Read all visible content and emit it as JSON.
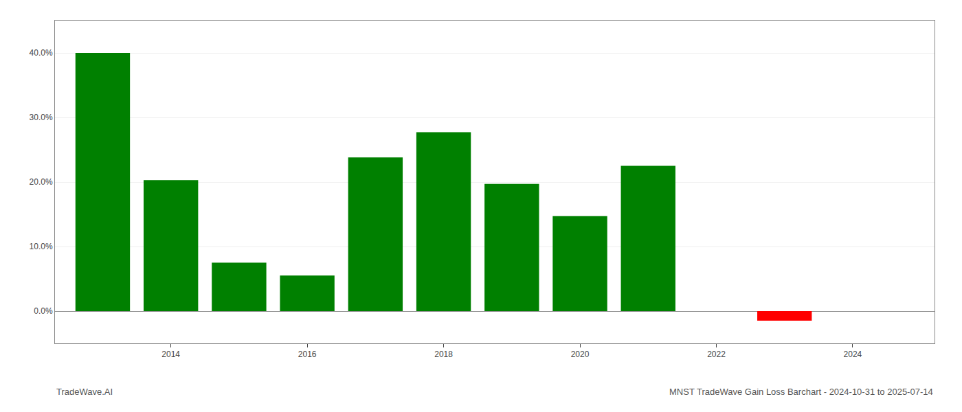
{
  "chart_data": {
    "type": "bar",
    "x": [
      2013,
      2014,
      2015,
      2016,
      2017,
      2018,
      2019,
      2020,
      2021,
      2023
    ],
    "values": [
      0.4,
      0.203,
      0.075,
      0.055,
      0.238,
      0.277,
      0.197,
      0.147,
      0.225,
      -0.015
    ],
    "colors": [
      "#008000",
      "#008000",
      "#008000",
      "#008000",
      "#008000",
      "#008000",
      "#008000",
      "#008000",
      "#008000",
      "#ff0000"
    ],
    "xlim": [
      2012.3,
      2025.2
    ],
    "xticks": [
      2014,
      2016,
      2018,
      2020,
      2022,
      2024
    ],
    "ylim": [
      -0.05,
      0.45
    ],
    "yticks": [
      {
        "value": 0,
        "label": "0.0%"
      },
      {
        "value": 0.1,
        "label": "10.0%"
      },
      {
        "value": 0.2,
        "label": "20.0%"
      },
      {
        "value": 0.3,
        "label": "30.0%"
      },
      {
        "value": 0.4,
        "label": "40.0%"
      }
    ],
    "grid": true,
    "annotations": [
      "TradeWave.AI",
      "MNST TradeWave Gain Loss Barchart - 2024-10-31 to 2025-07-14"
    ]
  }
}
